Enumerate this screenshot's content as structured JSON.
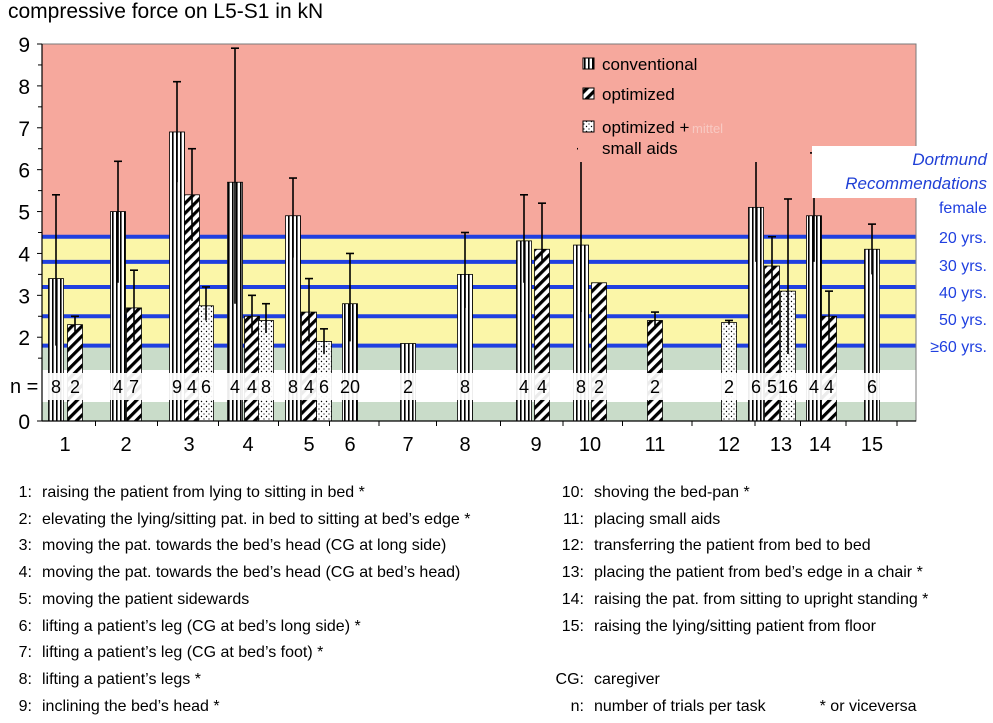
{
  "chart_data": {
    "type": "bar",
    "title": "compressive force on L5-S1 in kN",
    "ylim": [
      0,
      9
    ],
    "yticks": [
      "0",
      "2",
      "3",
      "4",
      "5",
      "6",
      "7",
      "8",
      "9"
    ],
    "n_label": "n =",
    "series_names": [
      "conventional",
      "optimized",
      "optimized + small aids"
    ],
    "legend": {
      "conventional": "conventional",
      "optimized": "optimized",
      "aids_line1": "optimized +",
      "aids_line2": "small aids",
      "watermark": "mittel"
    },
    "zones": [
      {
        "from": 0,
        "to": 1.8,
        "color": "#c9dcc9"
      },
      {
        "from": 1.8,
        "to": 4.4,
        "color": "#fbf6a8"
      },
      {
        "from": 4.4,
        "to": 9,
        "color": "#f6a89d"
      }
    ],
    "recommendations": {
      "title_line1": "Dortmund",
      "title_line2": "Recommendations",
      "lines": [
        {
          "label": "female",
          "value": null
        },
        {
          "label": "20 yrs.",
          "value": 4.4
        },
        {
          "label": "30 yrs.",
          "value": 3.8
        },
        {
          "label": "40 yrs.",
          "value": 3.2
        },
        {
          "label": "50 yrs.",
          "value": 2.5
        },
        {
          "label": "≥60 yrs.",
          "value": 1.8
        }
      ],
      "line_color": "#2040e0"
    },
    "categories": [
      "1",
      "2",
      "3",
      "4",
      "5",
      "6",
      "7",
      "8",
      "9",
      "10",
      "11",
      "12",
      "13",
      "14",
      "15"
    ],
    "bars": [
      {
        "task": "1",
        "series": "conventional",
        "value": 3.4,
        "err_low": 1.8,
        "err_high": 5.4,
        "n": "8"
      },
      {
        "task": "1",
        "series": "optimized",
        "value": 2.3,
        "err_low": 2.1,
        "err_high": 2.5,
        "n": "2"
      },
      {
        "task": "2",
        "series": "conventional",
        "value": 5.0,
        "err_low": 3.3,
        "err_high": 6.2,
        "n": "4"
      },
      {
        "task": "2",
        "series": "optimized",
        "value": 2.7,
        "err_low": 1.9,
        "err_high": 3.6,
        "n": "7"
      },
      {
        "task": "3",
        "series": "conventional",
        "value": 6.9,
        "err_low": 5.7,
        "err_high": 8.1,
        "n": "9"
      },
      {
        "task": "3",
        "series": "optimized",
        "value": 5.4,
        "err_low": 4.3,
        "err_high": 6.5,
        "n": "4"
      },
      {
        "task": "3",
        "series": "optimized + small aids",
        "value": 2.75,
        "err_low": 2.4,
        "err_high": 3.2,
        "n": "6"
      },
      {
        "task": "4",
        "series": "conventional",
        "value": 5.7,
        "err_low": 2.8,
        "err_high": 8.9,
        "n": "4"
      },
      {
        "task": "4",
        "series": "optimized",
        "value": 2.5,
        "err_low": 2.1,
        "err_high": 3.0,
        "n": "4"
      },
      {
        "task": "4",
        "series": "optimized + small aids",
        "value": 2.4,
        "err_low": 2.1,
        "err_high": 2.8,
        "n": "8"
      },
      {
        "task": "5",
        "series": "conventional",
        "value": 4.9,
        "err_low": 3.9,
        "err_high": 5.8,
        "n": "8"
      },
      {
        "task": "5",
        "series": "optimized",
        "value": 2.6,
        "err_low": 1.9,
        "err_high": 3.4,
        "n": "4"
      },
      {
        "task": "5",
        "series": "optimized + small aids",
        "value": 1.9,
        "err_low": 1.6,
        "err_high": 2.2,
        "n": "6"
      },
      {
        "task": "6",
        "series": "conventional",
        "value": 2.8,
        "err_low": 1.9,
        "err_high": 4.0,
        "n": "20"
      },
      {
        "task": "7",
        "series": "conventional",
        "value": 1.85,
        "err_low": null,
        "err_high": null,
        "n": "2"
      },
      {
        "task": "8",
        "series": "conventional",
        "value": 3.5,
        "err_low": 2.7,
        "err_high": 4.5,
        "n": "8"
      },
      {
        "task": "9",
        "series": "conventional",
        "value": 4.3,
        "err_low": 3.3,
        "err_high": 5.4,
        "n": "4"
      },
      {
        "task": "9",
        "series": "optimized",
        "value": 4.1,
        "err_low": 3.8,
        "err_high": 5.2,
        "n": "4"
      },
      {
        "task": "10",
        "series": "conventional",
        "value": 4.2,
        "err_low": 2.6,
        "err_high": 6.5,
        "n": "8"
      },
      {
        "task": "10",
        "series": "optimized",
        "value": 3.3,
        "err_low": null,
        "err_high": null,
        "n": "2"
      },
      {
        "task": "11",
        "series": "optimized",
        "value": 2.4,
        "err_low": 2.2,
        "err_high": 2.6,
        "n": "2"
      },
      {
        "task": "12",
        "series": "optimized + small aids",
        "value": 2.35,
        "err_low": 2.3,
        "err_high": 2.4,
        "n": "2"
      },
      {
        "task": "13",
        "series": "conventional",
        "value": 5.1,
        "err_low": 3.8,
        "err_high": 6.5,
        "n": "6"
      },
      {
        "task": "13",
        "series": "optimized",
        "value": 3.7,
        "err_low": 2.3,
        "err_high": 4.4,
        "n": "5"
      },
      {
        "task": "13",
        "series": "optimized + small aids",
        "value": 3.1,
        "err_low": 1.6,
        "err_high": 5.3,
        "n": "16"
      },
      {
        "task": "14",
        "series": "conventional",
        "value": 4.9,
        "err_low": 3.8,
        "err_high": 6.4,
        "n": "4"
      },
      {
        "task": "14",
        "series": "optimized",
        "value": 2.5,
        "err_low": 1.9,
        "err_high": 3.1,
        "n": "4"
      },
      {
        "task": "15",
        "series": "conventional",
        "value": 4.1,
        "err_low": 3.5,
        "err_high": 4.7,
        "n": "6"
      }
    ]
  },
  "tasks_left": [
    {
      "num": "1:",
      "text": "raising the patient from lying to sitting in bed *"
    },
    {
      "num": "2:",
      "text": "elevating the lying/sitting pat. in bed to sitting at bed’s edge *"
    },
    {
      "num": "3:",
      "text": "moving the pat. towards the bed’s head (CG at long side)"
    },
    {
      "num": "4:",
      "text": "moving the pat. towards the bed’s head (CG at bed’s head)"
    },
    {
      "num": "5:",
      "text": "moving the patient sidewards"
    },
    {
      "num": "6:",
      "text": "lifting a patient’s leg (CG at bed’s long side) *"
    },
    {
      "num": "7:",
      "text": "lifting a patient’s leg (CG at bed’s foot) *"
    },
    {
      "num": "8:",
      "text": "lifting a patient’s legs *"
    },
    {
      "num": "9:",
      "text": "inclining the bed’s head *"
    }
  ],
  "tasks_right": [
    {
      "num": "10:",
      "text": "shoving the bed-pan *"
    },
    {
      "num": "11:",
      "text": "placing small aids"
    },
    {
      "num": "12:",
      "text": "transferring the patient from bed to bed"
    },
    {
      "num": "13:",
      "text": "placing the patient from bed’s edge in a chair *"
    },
    {
      "num": "14:",
      "text": "raising the pat. from sitting to upright standing *"
    },
    {
      "num": "15:",
      "text": "raising the lying/sitting patient from floor"
    }
  ],
  "footnotes": {
    "cg_key": "CG:",
    "cg_text": "caregiver",
    "n_key": "n:",
    "n_text": "number of trials per task",
    "vice": "* or viceversa"
  }
}
